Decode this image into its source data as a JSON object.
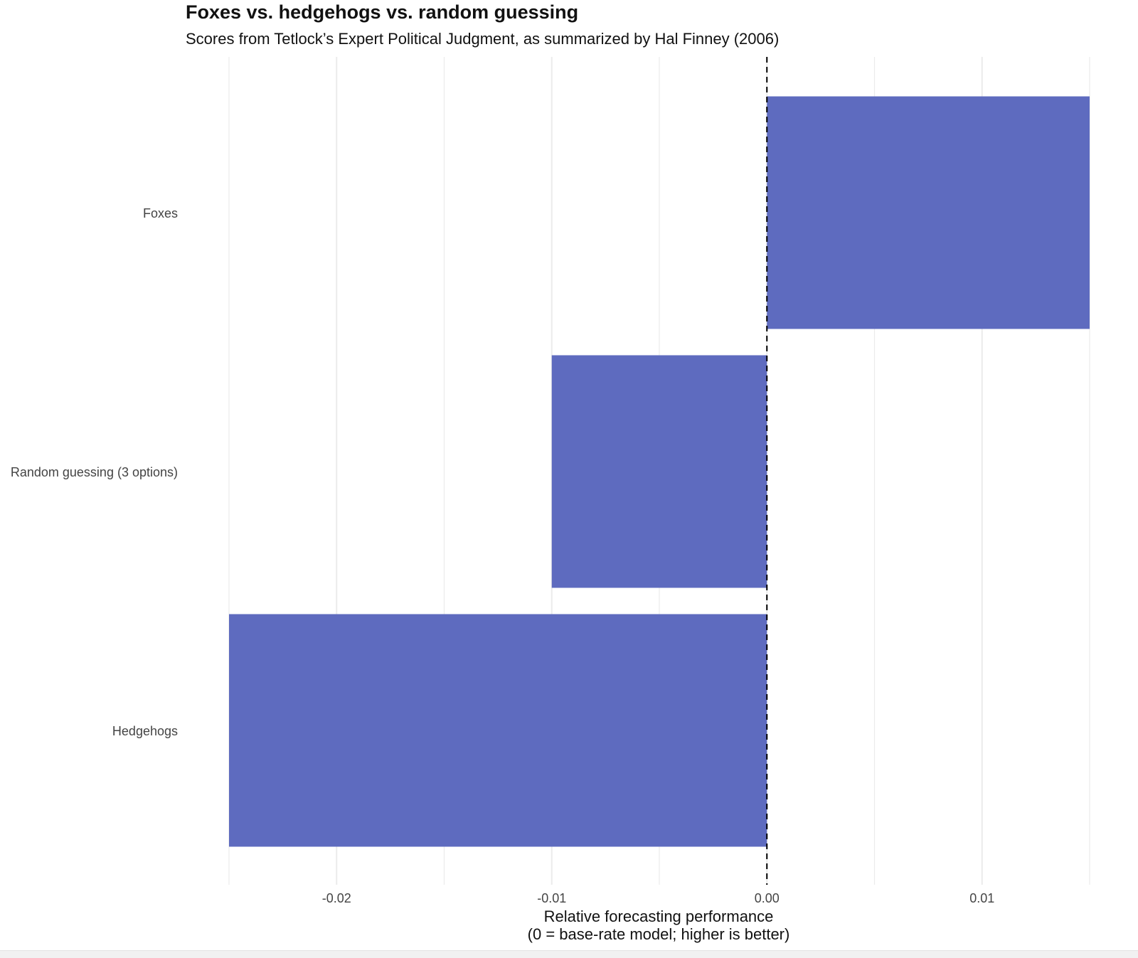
{
  "chart_data": {
    "type": "bar",
    "orientation": "horizontal",
    "title": "Foxes vs. hedgehogs vs. random guessing",
    "subtitle": "Scores from Tetlock’s Expert Political Judgment, as summarized by Hal Finney (2006)",
    "categories": [
      "Foxes",
      "Random guessing (3 options)",
      "Hedgehogs"
    ],
    "values": [
      0.015,
      -0.01,
      -0.025
    ],
    "xlabel_line1": "Relative forecasting performance",
    "xlabel_line2": "(0 = base-rate model; higher is better)",
    "ylabel": "",
    "xlim": [
      -0.025,
      0.015
    ],
    "x_ticks": [
      {
        "value": -0.02,
        "label": "-0.02"
      },
      {
        "value": -0.01,
        "label": "-0.01"
      },
      {
        "value": 0.0,
        "label": "0.00"
      },
      {
        "value": 0.01,
        "label": "0.01"
      }
    ],
    "minor_gridlines": [
      -0.025,
      -0.015,
      -0.005,
      0.005,
      0.015
    ],
    "reference_line": {
      "value": 0,
      "style": "dashed"
    },
    "grid": true,
    "legend": "none",
    "colors": {
      "bar": "#5e6bbf",
      "grid": "#ebebeb",
      "reference": "#000000",
      "text": "#444444"
    }
  }
}
